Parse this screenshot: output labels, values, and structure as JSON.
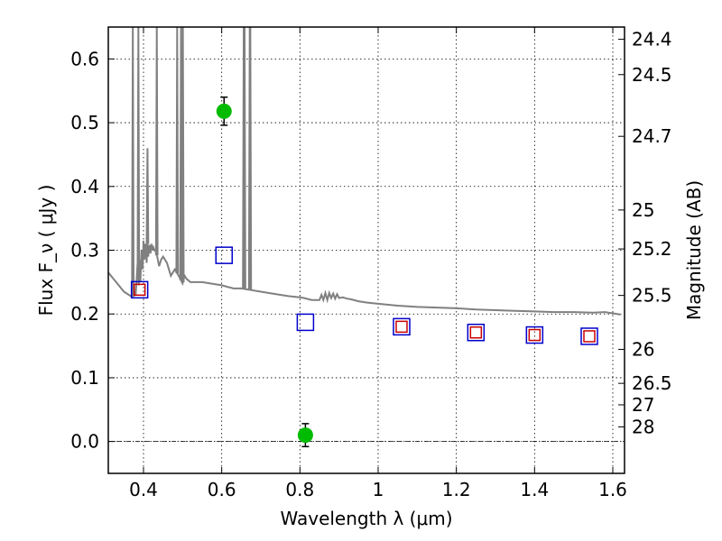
{
  "chart_data": {
    "type": "scatter",
    "title": "",
    "xlabel": "Wavelength  λ (μm)",
    "ylabel": "Flux  F_ν  ( μJy )",
    "ylabel_right": "Magnitude (AB)",
    "xlim": [
      0.31,
      1.63
    ],
    "ylim": [
      -0.05,
      0.65
    ],
    "grid": true,
    "x_ticks": [
      0.4,
      0.6,
      0.8,
      1.0,
      1.2,
      1.4,
      1.6
    ],
    "x_tick_labels": [
      "0.4",
      "0.6",
      "0.8",
      "1",
      "1.2",
      "1.4",
      "1.6"
    ],
    "y_ticks": [
      0.0,
      0.1,
      0.2,
      0.3,
      0.4,
      0.5,
      0.6
    ],
    "y_tick_labels": [
      "0.0",
      "0.1",
      "0.2",
      "0.3",
      "0.4",
      "0.5",
      "0.6"
    ],
    "right_ticks": [
      {
        "flux": 0.6308,
        "label": "24.4"
      },
      {
        "flux": 0.5754,
        "label": "24.5"
      },
      {
        "flux": 0.4786,
        "label": "24.7"
      },
      {
        "flux": 0.3631,
        "label": "25"
      },
      {
        "flux": 0.302,
        "label": "25.2"
      },
      {
        "flux": 0.2291,
        "label": "25.5"
      },
      {
        "flux": 0.1445,
        "label": "26"
      },
      {
        "flux": 0.0912,
        "label": "26.5"
      },
      {
        "flux": 0.0575,
        "label": "27"
      },
      {
        "flux": 0.0229,
        "label": "28"
      }
    ],
    "series": [
      {
        "name": "model spectrum",
        "kind": "line",
        "color": "#808080",
        "x": [
          0.31,
          0.33,
          0.35,
          0.37,
          0.38,
          0.385,
          0.388,
          0.39,
          0.392,
          0.395,
          0.398,
          0.4,
          0.402,
          0.405,
          0.408,
          0.41,
          0.412,
          0.415,
          0.418,
          0.42,
          0.422,
          0.425,
          0.428,
          0.43,
          0.435,
          0.44,
          0.445,
          0.45,
          0.46,
          0.47,
          0.48,
          0.49,
          0.5,
          0.505,
          0.51,
          0.52,
          0.53,
          0.55,
          0.58,
          0.6,
          0.63,
          0.65,
          0.67,
          0.7,
          0.73,
          0.75,
          0.77,
          0.8,
          0.81,
          0.83,
          0.85,
          0.855,
          0.86,
          0.865,
          0.87,
          0.875,
          0.88,
          0.885,
          0.89,
          0.895,
          0.9,
          0.91,
          0.92,
          0.93,
          0.95,
          0.97,
          1.0,
          1.05,
          1.1,
          1.15,
          1.2,
          1.25,
          1.3,
          1.35,
          1.4,
          1.45,
          1.5,
          1.55,
          1.58,
          1.6,
          1.62
        ],
        "y": [
          0.265,
          0.25,
          0.235,
          0.227,
          0.23,
          0.28,
          0.245,
          0.285,
          0.25,
          0.3,
          0.27,
          0.315,
          0.285,
          0.31,
          0.28,
          0.312,
          0.29,
          0.308,
          0.295,
          0.31,
          0.3,
          0.305,
          0.3,
          0.3,
          0.29,
          0.275,
          0.285,
          0.29,
          0.28,
          0.26,
          0.27,
          0.26,
          0.248,
          0.26,
          0.255,
          0.25,
          0.25,
          0.25,
          0.247,
          0.245,
          0.24,
          0.24,
          0.238,
          0.235,
          0.232,
          0.23,
          0.228,
          0.226,
          0.225,
          0.222,
          0.222,
          0.23,
          0.222,
          0.233,
          0.222,
          0.233,
          0.225,
          0.232,
          0.224,
          0.231,
          0.225,
          0.226,
          0.224,
          0.223,
          0.22,
          0.218,
          0.216,
          0.213,
          0.211,
          0.21,
          0.209,
          0.207,
          0.206,
          0.205,
          0.204,
          0.203,
          0.203,
          0.202,
          0.203,
          0.201,
          0.199
        ],
        "emission_lines": [
          {
            "x": 0.3727,
            "peak": 0.65
          },
          {
            "x": 0.3869,
            "peak": 0.65
          },
          {
            "x": 0.4102,
            "peak": 0.46
          },
          {
            "x": 0.434,
            "peak": 0.65
          },
          {
            "x": 0.4861,
            "peak": 0.65
          },
          {
            "x": 0.4959,
            "peak": 0.65
          },
          {
            "x": 0.5007,
            "peak": 0.65
          },
          {
            "x": 0.6563,
            "peak": 0.65
          },
          {
            "x": 0.6584,
            "peak": 0.65
          },
          {
            "x": 0.6717,
            "peak": 0.65
          },
          {
            "x": 0.6731,
            "peak": 0.65
          }
        ]
      },
      {
        "name": "observed photometry",
        "kind": "points",
        "marker": "circle",
        "color": "#00bb00",
        "x": [
          0.606,
          0.814
        ],
        "y": [
          0.518,
          0.01
        ],
        "yerr": [
          0.022,
          0.018
        ]
      },
      {
        "name": "model photometry (blue)",
        "kind": "points",
        "marker": "square-open",
        "color": "#0000cc",
        "x": [
          0.39,
          0.606,
          0.814,
          1.06,
          1.25,
          1.4,
          1.54
        ],
        "y": [
          0.238,
          0.292,
          0.187,
          0.18,
          0.171,
          0.167,
          0.165
        ]
      },
      {
        "name": "model photometry (red)",
        "kind": "points",
        "marker": "square-open",
        "color": "#cc0000",
        "x": [
          0.39,
          1.06,
          1.25,
          1.4,
          1.54
        ],
        "y": [
          0.238,
          0.18,
          0.171,
          0.167,
          0.165
        ]
      }
    ]
  }
}
